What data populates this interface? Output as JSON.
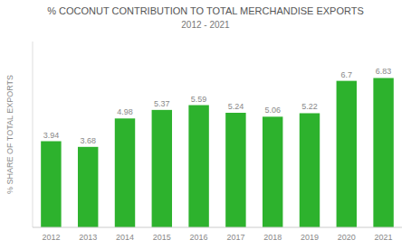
{
  "chart_data": {
    "type": "bar",
    "title": "% COCONUT CONTRIBUTION TO TOTAL MERCHANDISE EXPORTS",
    "subtitle": "2012 - 2021",
    "y_label": "% SHARE OF TOTAL EXPORTS",
    "categories": [
      "2012",
      "2013",
      "2014",
      "2015",
      "2016",
      "2017",
      "2018",
      "2019",
      "2020",
      "2021"
    ],
    "values": [
      3.94,
      3.68,
      4.98,
      5.37,
      5.59,
      5.24,
      5.06,
      5.22,
      6.7,
      6.83
    ],
    "color": "#2db22d",
    "ylim": [
      0,
      8.5
    ],
    "grid": false,
    "data_labels": true,
    "tick_labels": "x"
  }
}
